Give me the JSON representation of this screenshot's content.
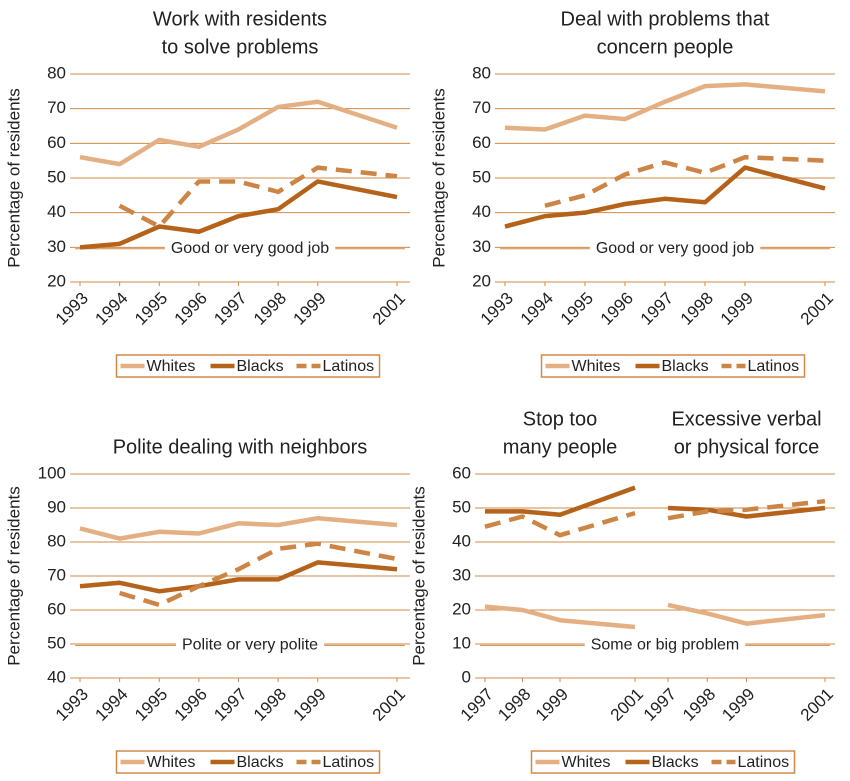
{
  "chart_data": [
    {
      "type": "line",
      "title": [
        "Work with residents",
        "to solve problems"
      ],
      "ylabel": "Percentage of residents",
      "annotation": "Good or very good job",
      "x": [
        1993,
        1994,
        1995,
        1996,
        1997,
        1998,
        1999,
        2001
      ],
      "xlim": [
        1993,
        2001
      ],
      "xticks": [
        1993,
        1994,
        1995,
        1996,
        1997,
        1998,
        1999,
        2001
      ],
      "ylim": [
        20,
        80
      ],
      "yticks": [
        20,
        30,
        40,
        50,
        60,
        70,
        80
      ],
      "grid": true,
      "series": [
        {
          "name": "Whites",
          "color": "#e4b083",
          "style": "solid",
          "values": [
            56,
            54,
            61,
            59,
            64,
            70.5,
            72,
            64.5
          ]
        },
        {
          "name": "Blacks",
          "color": "#b5631b",
          "style": "solid",
          "values": [
            30,
            31,
            36,
            34.5,
            39,
            41,
            49,
            44.5
          ]
        },
        {
          "name": "Latinos",
          "color": "#cd8546",
          "style": "dashed",
          "values": [
            null,
            42,
            36,
            49,
            49,
            46,
            53,
            50.5
          ]
        }
      ]
    },
    {
      "type": "line",
      "title": [
        "Deal with problems that",
        "concern people"
      ],
      "ylabel": "Percentage of residents",
      "annotation": "Good or very good job",
      "x": [
        1993,
        1994,
        1995,
        1996,
        1997,
        1998,
        1999,
        2001
      ],
      "xlim": [
        1993,
        2001
      ],
      "xticks": [
        1993,
        1994,
        1995,
        1996,
        1997,
        1998,
        1999,
        2001
      ],
      "ylim": [
        20,
        80
      ],
      "yticks": [
        20,
        30,
        40,
        50,
        60,
        70,
        80
      ],
      "grid": true,
      "series": [
        {
          "name": "Whites",
          "color": "#e4b083",
          "style": "solid",
          "values": [
            64.5,
            64,
            68,
            67,
            72,
            76.5,
            77,
            75
          ]
        },
        {
          "name": "Blacks",
          "color": "#b5631b",
          "style": "solid",
          "values": [
            36,
            39,
            40,
            42.5,
            44,
            43,
            53,
            47
          ]
        },
        {
          "name": "Latinos",
          "color": "#cd8546",
          "style": "dashed",
          "values": [
            null,
            42,
            45,
            51,
            54.5,
            51.5,
            56,
            55
          ]
        }
      ]
    },
    {
      "type": "line",
      "title": [
        "Polite dealing with neighbors"
      ],
      "ylabel": "Percentage of residents",
      "annotation": "Polite or very polite",
      "x": [
        1993,
        1994,
        1995,
        1996,
        1997,
        1998,
        1999,
        2001
      ],
      "xlim": [
        1993,
        2001
      ],
      "xticks": [
        1993,
        1994,
        1995,
        1996,
        1997,
        1998,
        1999,
        2001
      ],
      "ylim": [
        40,
        100
      ],
      "yticks": [
        40,
        50,
        60,
        70,
        80,
        90,
        100
      ],
      "grid": true,
      "series": [
        {
          "name": "Whites",
          "color": "#e4b083",
          "style": "solid",
          "values": [
            84,
            81,
            83,
            82.5,
            85.5,
            85,
            87,
            85
          ]
        },
        {
          "name": "Blacks",
          "color": "#b5631b",
          "style": "solid",
          "values": [
            67,
            68,
            65.5,
            67,
            69,
            69,
            74,
            72
          ]
        },
        {
          "name": "Latinos",
          "color": "#cd8546",
          "style": "dashed",
          "values": [
            null,
            65,
            61.5,
            67,
            72,
            78,
            79.5,
            75
          ]
        }
      ]
    },
    {
      "type": "line",
      "ylabel": "Percentage of residents",
      "annotation": "Some or big problem",
      "ylim": [
        0,
        60
      ],
      "yticks": [
        0,
        10,
        20,
        30,
        40,
        50,
        60
      ],
      "grid": true,
      "subplots": [
        {
          "title": [
            "Stop too",
            "many people"
          ],
          "x": [
            1997,
            1998,
            1999,
            2001
          ],
          "xlim": [
            1997,
            2001
          ],
          "xticks": [
            1997,
            1998,
            1999,
            2001
          ],
          "series": [
            {
              "name": "Whites",
              "color": "#e4b083",
              "style": "solid",
              "values": [
                21,
                20,
                17,
                15
              ]
            },
            {
              "name": "Blacks",
              "color": "#b5631b",
              "style": "solid",
              "values": [
                49,
                49,
                48,
                56
              ]
            },
            {
              "name": "Latinos",
              "color": "#cd8546",
              "style": "dashed",
              "values": [
                44.5,
                47.5,
                42,
                48.5
              ]
            }
          ]
        },
        {
          "title": [
            "Excessive verbal",
            "or physical force"
          ],
          "x": [
            1997,
            1998,
            1999,
            2001
          ],
          "xlim": [
            1997,
            2001
          ],
          "xticks": [
            1997,
            1998,
            1999,
            2001
          ],
          "series": [
            {
              "name": "Whites",
              "color": "#e4b083",
              "style": "solid",
              "values": [
                21.5,
                19,
                16,
                18.5
              ]
            },
            {
              "name": "Blacks",
              "color": "#b5631b",
              "style": "solid",
              "values": [
                50,
                49.5,
                47.5,
                50
              ]
            },
            {
              "name": "Latinos",
              "color": "#cd8546",
              "style": "dashed",
              "values": [
                47,
                49,
                49.5,
                52
              ]
            }
          ]
        }
      ]
    }
  ]
}
